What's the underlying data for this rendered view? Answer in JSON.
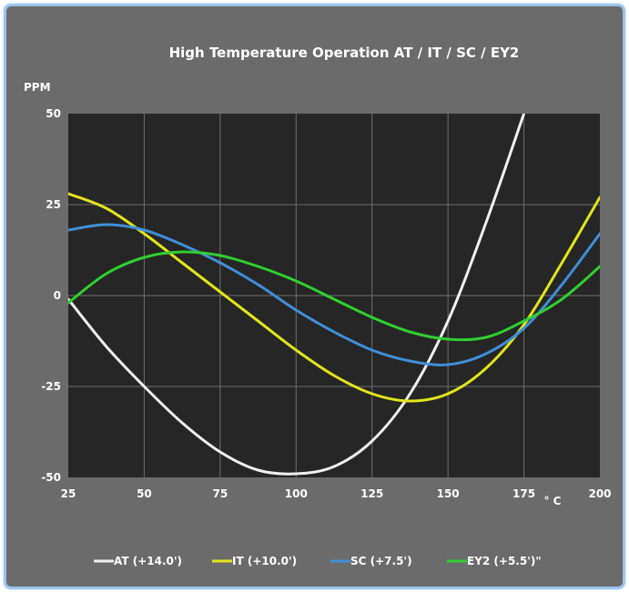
{
  "chart_data": {
    "type": "line",
    "title": "High Temperature Operation AT / IT / SC / EY2",
    "ylabel": "PPM",
    "xlabel": "° C",
    "xlim": [
      25,
      200
    ],
    "ylim": [
      -50,
      50
    ],
    "x_ticks": [
      "25",
      "50",
      "75",
      "100",
      "125",
      "150",
      "175",
      "200"
    ],
    "y_ticks": [
      "50",
      "25",
      "0",
      "-25",
      "-50"
    ],
    "grid": true,
    "legend_position": "bottom",
    "background_color": "#6b6b6b",
    "plot_color": "#262626",
    "x": [
      25,
      37.5,
      50,
      62.5,
      75,
      87.5,
      100,
      112.5,
      125,
      137.5,
      150,
      162.5,
      175,
      187.5,
      200
    ],
    "series": [
      {
        "name": "AT (+14.0')",
        "color": "#f0f0f0",
        "values": [
          -1,
          -14,
          -25,
          -35,
          -43,
          -48,
          -49,
          -47,
          -40,
          -27,
          -7,
          20,
          50,
          null,
          null
        ]
      },
      {
        "name": "IT (+10.0')",
        "color": "#e3e31c",
        "values": [
          28,
          24,
          17,
          9,
          1,
          -7,
          -15,
          -22,
          -27,
          -29,
          -27,
          -20,
          -8,
          9,
          27
        ]
      },
      {
        "name": "SC (+7.5')",
        "color": "#3f8fd8",
        "values": [
          18,
          19.5,
          18,
          14,
          9,
          3,
          -4,
          -10,
          -15,
          -18,
          -19,
          -16,
          -9,
          3,
          17
        ]
      },
      {
        "name": "EY2 (+5.5')\"",
        "color": "#2fd02f",
        "values": [
          -2,
          6,
          10.5,
          12,
          11,
          8,
          4,
          -1,
          -6,
          -10,
          -12,
          -11.5,
          -7,
          -1,
          8
        ]
      }
    ]
  }
}
